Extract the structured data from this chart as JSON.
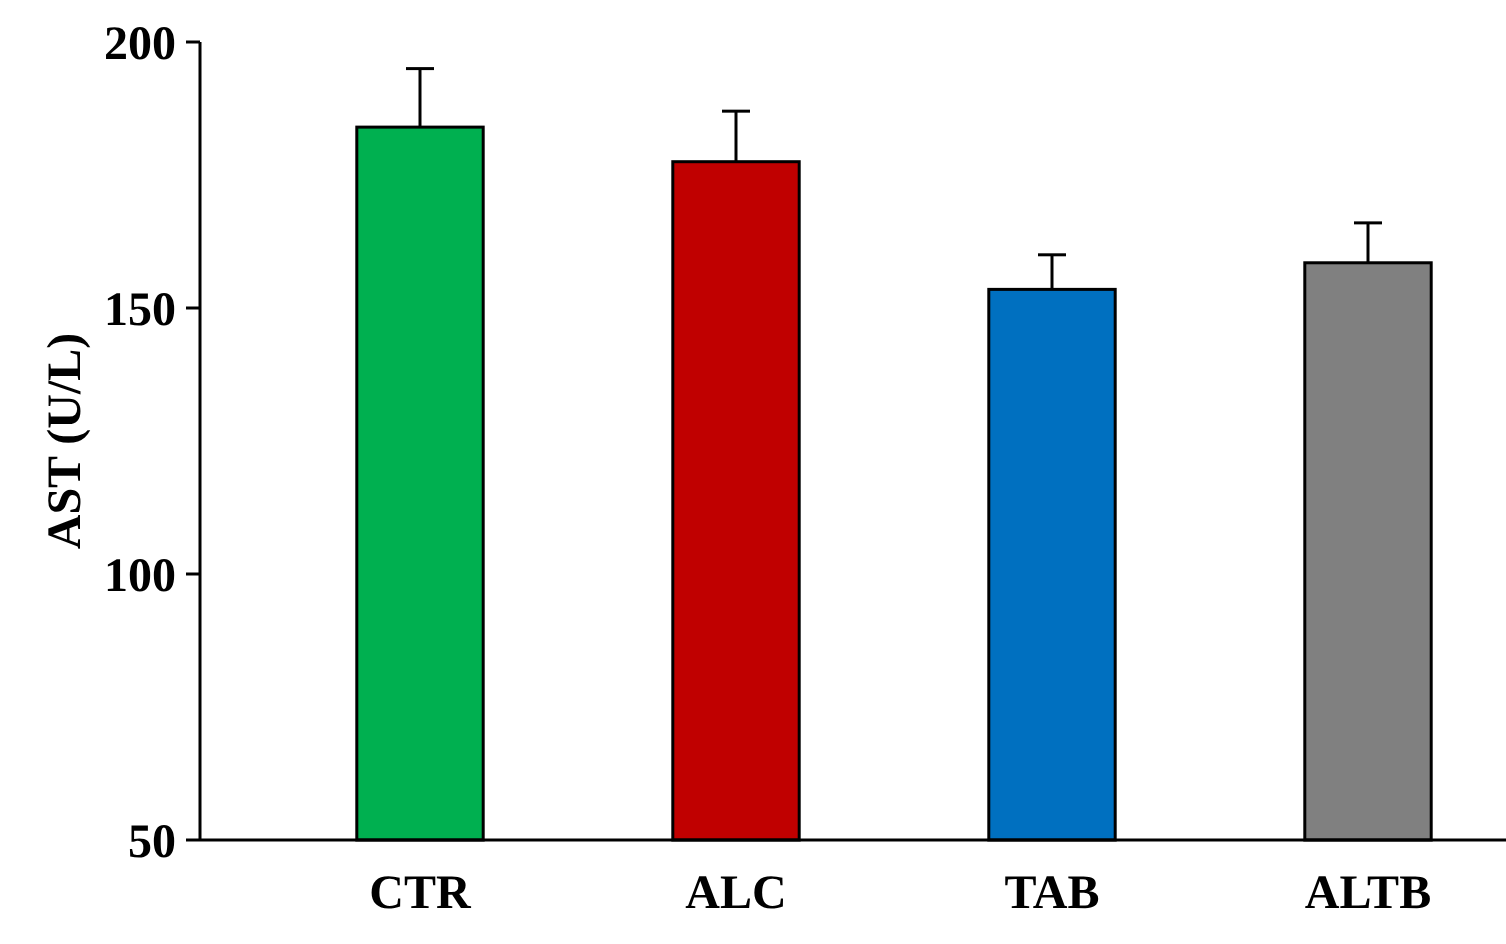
{
  "chart_data": {
    "type": "bar",
    "ylabel": "AST (U/L)",
    "categories": [
      "CTR",
      "ALC",
      "TAB",
      "ALTB"
    ],
    "values": [
      184,
      177.5,
      153.5,
      158.5
    ],
    "colors": [
      "#00b050",
      "#c00000",
      "#0070c0",
      "#808080"
    ],
    "errors": [
      [
        184,
        195
      ],
      [
        177.5,
        187
      ],
      [
        153.5,
        160
      ],
      [
        158.5,
        166
      ]
    ],
    "ylim": [
      50,
      200
    ],
    "yticks": [
      50,
      100,
      150,
      200
    ],
    "grid": false
  }
}
